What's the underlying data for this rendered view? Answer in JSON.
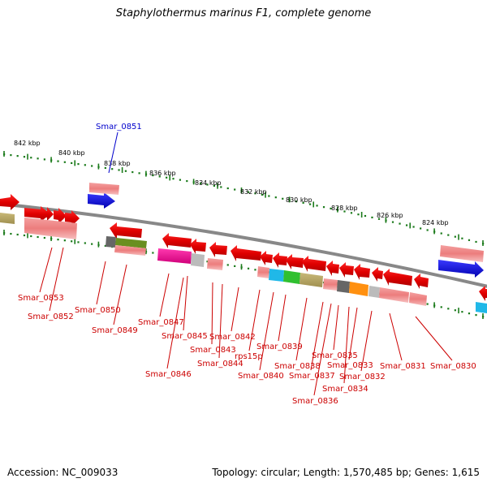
{
  "title": "Staphylothermus marinus F1, complete genome",
  "footer": {
    "accession": "Accession: NC_009033",
    "summary": "Topology: circular; Length: 1,570,485 bp; Genes: 1,615"
  },
  "colors": {
    "gene_red": "#ee0000",
    "gene_pink": "#f08080",
    "ruler_green": "#1a7a1a",
    "backbone": "#888888",
    "label_red": "#cc0000",
    "label_blue": "#0000cc"
  },
  "ruler": [
    {
      "label": "842 kbp"
    },
    {
      "label": "840 kbp"
    },
    {
      "label": "838 kbp"
    },
    {
      "label": "836 kbp"
    },
    {
      "label": "834 kbp"
    },
    {
      "label": "832 kbp"
    },
    {
      "label": "830 kbp"
    },
    {
      "label": "828 kbp"
    },
    {
      "label": "826 kbp"
    },
    {
      "label": "824 kbp"
    }
  ],
  "gene_labels": [
    {
      "name": "Smar_0851",
      "strand": "top"
    },
    {
      "name": "Smar_0853",
      "strand": "bottom"
    },
    {
      "name": "Smar_0852",
      "strand": "bottom"
    },
    {
      "name": "Smar_0850",
      "strand": "bottom"
    },
    {
      "name": "Smar_0849",
      "strand": "bottom"
    },
    {
      "name": "Smar_0847",
      "strand": "bottom"
    },
    {
      "name": "Smar_0845",
      "strand": "bottom"
    },
    {
      "name": "Smar_0846",
      "strand": "bottom"
    },
    {
      "name": "Smar_0843",
      "strand": "bottom"
    },
    {
      "name": "Smar_0844",
      "strand": "bottom"
    },
    {
      "name": "Smar_0842",
      "strand": "bottom"
    },
    {
      "name": "rps15p",
      "strand": "bottom"
    },
    {
      "name": "Smar_0840",
      "strand": "bottom"
    },
    {
      "name": "Smar_0839",
      "strand": "bottom"
    },
    {
      "name": "Smar_0838",
      "strand": "bottom"
    },
    {
      "name": "Smar_0837",
      "strand": "bottom"
    },
    {
      "name": "Smar_0836",
      "strand": "bottom"
    },
    {
      "name": "Smar_0835",
      "strand": "bottom"
    },
    {
      "name": "Smar_0834",
      "strand": "bottom"
    },
    {
      "name": "Smar_0833",
      "strand": "bottom"
    },
    {
      "name": "Smar_0832",
      "strand": "bottom"
    },
    {
      "name": "Smar_0831",
      "strand": "bottom"
    },
    {
      "name": "Smar_0830",
      "strand": "bottom"
    }
  ]
}
